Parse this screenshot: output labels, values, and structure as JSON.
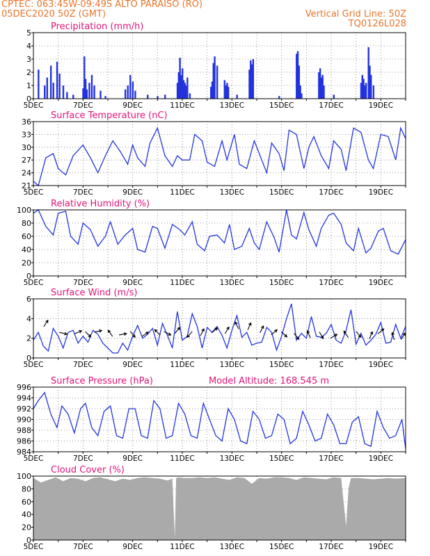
{
  "header": {
    "org_coords": "CPTEC:   063:45W-09:49S   ALTO PARAISO (RO)",
    "date": "05DEC2020 50Z (GMT)",
    "grid_note": "Vertical Grid Line: 50Z",
    "code": "TQ0126L028"
  },
  "colors": {
    "header": "#e8742a",
    "title": "#e0147a",
    "series": "#2233dd",
    "wind_arrow": "#000000",
    "cloud": "#aaaaaa"
  },
  "chart_data": [
    {
      "type": "bar",
      "title": "Precipitation (mm/h)",
      "ylim": [
        0,
        5
      ],
      "yticks": [
        0,
        1,
        2,
        3,
        4,
        5
      ],
      "x_day_range": [
        5.0,
        20.0
      ],
      "xticks": [
        "5DEC",
        "7DEC",
        "9DEC",
        "11DEC",
        "13DEC",
        "15DEC",
        "17DEC",
        "19DEC"
      ],
      "x": [
        5.2,
        5.45,
        5.55,
        5.7,
        5.8,
        5.95,
        6.05,
        6.2,
        6.35,
        6.6,
        7.0,
        7.05,
        7.1,
        7.15,
        7.25,
        7.35,
        7.45,
        7.7,
        7.9,
        8.7,
        8.8,
        8.9,
        9.0,
        9.1,
        9.6,
        10.0,
        10.3,
        10.8,
        10.85,
        10.9,
        10.95,
        11.0,
        11.05,
        11.1,
        11.15,
        11.2,
        11.3,
        12.15,
        12.2,
        12.25,
        12.3,
        12.4,
        12.7,
        12.75,
        12.8,
        12.85,
        13.2,
        13.7,
        13.75,
        13.8,
        13.85,
        14.9,
        15.6,
        15.65,
        15.7,
        15.75,
        15.8,
        16.5,
        16.55,
        16.6,
        16.65,
        16.7,
        17.1,
        18.2,
        18.25,
        18.3,
        18.35,
        18.4,
        18.5,
        18.55,
        18.6,
        18.7
      ],
      "values": [
        2.2,
        1.0,
        1.6,
        2.5,
        1.2,
        2.8,
        1.9,
        1.0,
        0.5,
        0.3,
        0.8,
        3.2,
        1.5,
        0.7,
        1.2,
        1.8,
        1.0,
        0.6,
        0.2,
        0.7,
        1.0,
        1.8,
        1.3,
        0.6,
        0.3,
        0.2,
        0.3,
        1.2,
        2.0,
        3.1,
        1.8,
        2.3,
        1.4,
        1.2,
        1.0,
        1.6,
        0.4,
        0.9,
        1.3,
        2.7,
        3.2,
        2.5,
        1.4,
        1.0,
        1.2,
        0.9,
        0.3,
        2.2,
        2.9,
        2.6,
        3.0,
        0.2,
        3.4,
        3.6,
        2.5,
        1.0,
        0.4,
        2.0,
        2.3,
        1.6,
        1.8,
        1.0,
        0.3,
        1.2,
        1.8,
        1.5,
        1.0,
        1.2,
        3.9,
        2.5,
        1.8,
        1.0
      ]
    },
    {
      "type": "line",
      "title": "Surface Temperature (nC)",
      "ylim": [
        21,
        36
      ],
      "yticks": [
        21,
        24,
        27,
        30,
        33,
        36
      ],
      "x_day_range": [
        5.0,
        20.0
      ],
      "xticks": [
        "5DEC",
        "7DEC",
        "9DEC",
        "11DEC",
        "13DEC",
        "15DEC",
        "17DEC",
        "19DEC"
      ],
      "x": [
        5.0,
        5.2,
        5.5,
        5.8,
        6.0,
        6.3,
        6.6,
        7.0,
        7.3,
        7.6,
        7.9,
        8.2,
        8.5,
        8.8,
        9.0,
        9.2,
        9.5,
        9.7,
        10.0,
        10.3,
        10.6,
        10.8,
        11.0,
        11.3,
        11.5,
        11.8,
        12.0,
        12.3,
        12.6,
        12.8,
        13.1,
        13.3,
        13.6,
        13.9,
        14.1,
        14.4,
        14.6,
        14.9,
        15.1,
        15.3,
        15.6,
        15.9,
        16.1,
        16.3,
        16.6,
        16.9,
        17.1,
        17.4,
        17.6,
        17.9,
        18.2,
        18.5,
        18.7,
        19.0,
        19.3,
        19.6,
        19.8,
        20.0
      ],
      "values": [
        22.0,
        21.0,
        27.5,
        28.5,
        25.0,
        23.5,
        28.0,
        30.5,
        27.5,
        24.0,
        28.0,
        31.5,
        29.0,
        26.0,
        30.5,
        27.5,
        25.5,
        31.0,
        34.5,
        28.0,
        25.5,
        28.0,
        27.0,
        27.0,
        33.0,
        31.5,
        26.5,
        25.5,
        31.5,
        27.0,
        33.0,
        26.0,
        25.0,
        31.5,
        28.5,
        24.0,
        31.0,
        28.5,
        24.5,
        34.0,
        33.0,
        25.0,
        30.0,
        32.5,
        28.0,
        25.0,
        31.5,
        29.5,
        24.5,
        34.5,
        33.5,
        27.0,
        25.0,
        33.0,
        32.5,
        27.0,
        34.5,
        32.0
      ]
    },
    {
      "type": "line",
      "title": "Relative Humidity (%)",
      "ylim": [
        0,
        100
      ],
      "yticks": [
        0,
        20,
        40,
        60,
        80,
        100
      ],
      "x_day_range": [
        5.0,
        20.0
      ],
      "xticks": [
        "5DEC",
        "7DEC",
        "9DEC",
        "11DEC",
        "13DEC",
        "15DEC",
        "17DEC",
        "19DEC"
      ],
      "x": [
        5.0,
        5.2,
        5.5,
        5.8,
        6.0,
        6.3,
        6.5,
        6.8,
        7.0,
        7.3,
        7.6,
        7.9,
        8.1,
        8.4,
        8.7,
        9.0,
        9.2,
        9.5,
        9.8,
        10.0,
        10.3,
        10.6,
        10.9,
        11.1,
        11.4,
        11.6,
        11.9,
        12.1,
        12.4,
        12.7,
        12.9,
        13.1,
        13.4,
        13.7,
        13.9,
        14.1,
        14.4,
        14.7,
        14.9,
        15.2,
        15.4,
        15.6,
        15.9,
        16.1,
        16.4,
        16.6,
        16.9,
        17.1,
        17.4,
        17.6,
        17.9,
        18.1,
        18.4,
        18.6,
        18.9,
        19.1,
        19.4,
        19.7,
        20.0
      ],
      "values": [
        95,
        100,
        75,
        62,
        95,
        98,
        60,
        48,
        80,
        70,
        45,
        60,
        82,
        48,
        62,
        72,
        40,
        36,
        75,
        72,
        42,
        78,
        70,
        62,
        82,
        48,
        38,
        60,
        62,
        50,
        78,
        40,
        45,
        72,
        50,
        40,
        82,
        58,
        36,
        100,
        62,
        56,
        96,
        70,
        45,
        72,
        92,
        95,
        78,
        50,
        38,
        72,
        35,
        42,
        68,
        72,
        38,
        33,
        55
      ]
    },
    {
      "type": "line",
      "title": "Surface Wind (m/s)",
      "ylim": [
        0,
        6
      ],
      "yticks": [
        0,
        2,
        4,
        6
      ],
      "x_day_range": [
        5.0,
        20.0
      ],
      "xticks": [
        "5DEC",
        "7DEC",
        "9DEC",
        "11DEC",
        "13DEC",
        "15DEC",
        "17DEC",
        "19DEC"
      ],
      "x": [
        5.0,
        5.2,
        5.4,
        5.6,
        5.8,
        6.0,
        6.2,
        6.4,
        6.6,
        6.8,
        7.0,
        7.2,
        7.4,
        7.6,
        7.8,
        8.0,
        8.2,
        8.4,
        8.6,
        8.8,
        9.0,
        9.2,
        9.4,
        9.6,
        9.8,
        10.0,
        10.2,
        10.4,
        10.6,
        10.8,
        11.0,
        11.2,
        11.4,
        11.6,
        11.8,
        12.0,
        12.2,
        12.4,
        12.6,
        12.8,
        13.0,
        13.2,
        13.4,
        13.6,
        13.8,
        14.0,
        14.2,
        14.4,
        14.6,
        14.8,
        15.0,
        15.2,
        15.4,
        15.6,
        15.8,
        16.0,
        16.2,
        16.4,
        16.6,
        16.8,
        17.0,
        17.2,
        17.4,
        17.6,
        17.8,
        18.0,
        18.2,
        18.4,
        18.6,
        18.8,
        19.0,
        19.2,
        19.4,
        19.6,
        19.8,
        20.0
      ],
      "values": [
        1.8,
        2.6,
        1.2,
        0.7,
        3.0,
        2.2,
        1.0,
        2.6,
        2.8,
        1.5,
        2.2,
        1.6,
        2.8,
        2.4,
        1.5,
        1.0,
        0.5,
        0.5,
        1.5,
        0.8,
        2.2,
        3.3,
        2.0,
        2.4,
        3.0,
        1.3,
        3.5,
        2.3,
        1.0,
        4.7,
        1.8,
        2.2,
        4.5,
        3.2,
        1.0,
        3.1,
        2.6,
        3.2,
        2.3,
        1.0,
        2.8,
        4.3,
        2.1,
        2.6,
        1.3,
        1.5,
        1.6,
        3.1,
        2.6,
        0.8,
        2.2,
        4.0,
        5.5,
        1.8,
        2.5,
        2.0,
        4.2,
        2.2,
        2.1,
        2.5,
        3.4,
        1.8,
        1.5,
        2.8,
        4.9,
        1.4,
        2.5,
        1.3,
        1.8,
        2.4,
        3.6,
        1.5,
        1.6,
        3.4,
        2.0,
        3.2
      ],
      "arrows": {
        "x": [
          5.5,
          6.2,
          6.8,
          7.2,
          7.6,
          8.1,
          8.6,
          9.0,
          9.5,
          10.0,
          10.4,
          10.8,
          11.3,
          11.8,
          12.3,
          12.8,
          13.2,
          13.7,
          14.2,
          14.7,
          15.1,
          15.6,
          16.1,
          16.6,
          17.1,
          17.6,
          18.1,
          18.6,
          19.0,
          19.5,
          19.9
        ],
        "u": [
          0.6,
          0.8,
          0.7,
          0.6,
          0.9,
          -0.5,
          0.6,
          0.4,
          0.6,
          -0.7,
          0.8,
          0.5,
          -0.6,
          0.4,
          0.7,
          0.5,
          -0.4,
          0.3,
          0.4,
          0.6,
          0.8,
          0.5,
          -0.3,
          0.4,
          0.5,
          -0.4,
          0.5,
          0.3,
          0.6,
          -0.2,
          0.5
        ],
        "v": [
          0.9,
          -0.2,
          0.3,
          -0.6,
          0.2,
          0.7,
          0.1,
          -0.5,
          0.4,
          0.7,
          -0.4,
          0.6,
          -0.7,
          0.8,
          0.6,
          0.9,
          0.8,
          0.7,
          0.8,
          0.5,
          -0.7,
          -0.6,
          0.7,
          -0.7,
          0.3,
          0.6,
          -0.6,
          0.7,
          0.5,
          0.7,
          0.8
        ],
        "y": [
          3.5,
          2.5,
          2.6,
          2.4,
          2.7,
          2.5,
          2.4,
          2.4,
          2.4,
          2.6,
          2.5,
          2.8,
          2.4,
          2.6,
          2.8,
          2.8,
          3.3,
          3.2,
          2.9,
          2.6,
          2.4,
          2.2,
          2.4,
          2.3,
          2.2,
          2.4,
          2.4,
          2.3,
          2.7,
          2.2,
          2.2
        ]
      }
    },
    {
      "type": "line",
      "title": "Surface Pressure (hPa)",
      "annotation": "Model Altitude: 168.545 m",
      "ylim": [
        984,
        996
      ],
      "yticks": [
        984,
        986,
        988,
        990,
        992,
        994,
        996
      ],
      "x_day_range": [
        5.0,
        20.0
      ],
      "xticks": [
        "5DEC",
        "7DEC",
        "9DEC",
        "11DEC",
        "13DEC",
        "15DEC",
        "17DEC",
        "19DEC"
      ],
      "x": [
        5.0,
        5.2,
        5.45,
        5.7,
        5.95,
        6.15,
        6.4,
        6.65,
        6.9,
        7.1,
        7.35,
        7.6,
        7.85,
        8.1,
        8.35,
        8.6,
        8.85,
        9.1,
        9.35,
        9.6,
        9.85,
        10.1,
        10.35,
        10.6,
        10.85,
        11.1,
        11.35,
        11.6,
        11.85,
        12.1,
        12.35,
        12.6,
        12.85,
        13.1,
        13.35,
        13.6,
        13.85,
        14.1,
        14.35,
        14.6,
        14.85,
        15.1,
        15.35,
        15.6,
        15.85,
        16.1,
        16.35,
        16.6,
        16.85,
        17.1,
        17.35,
        17.6,
        17.85,
        18.1,
        18.35,
        18.6,
        18.85,
        19.1,
        19.35,
        19.6,
        19.85,
        20.0
      ],
      "values": [
        992.0,
        993.5,
        995.0,
        991.0,
        988.5,
        992.5,
        991.0,
        987.5,
        992.0,
        993.0,
        988.5,
        987.0,
        991.5,
        992.5,
        987.0,
        986.5,
        992.0,
        992.0,
        987.0,
        986.5,
        993.5,
        992.0,
        986.5,
        987.0,
        993.0,
        991.0,
        987.0,
        986.5,
        993.0,
        990.0,
        987.0,
        986.0,
        992.0,
        990.0,
        986.0,
        985.5,
        991.5,
        990.0,
        986.5,
        987.0,
        991.0,
        990.0,
        985.5,
        986.5,
        991.5,
        989.0,
        986.0,
        986.5,
        991.0,
        989.0,
        985.5,
        985.5,
        989.5,
        990.5,
        985.5,
        985.0,
        991.5,
        988.5,
        986.5,
        987.0,
        990.0,
        984.5
      ]
    },
    {
      "type": "area",
      "title": "Cloud Cover (%)",
      "ylim": [
        0,
        100
      ],
      "yticks": [
        0,
        20,
        40,
        60,
        80,
        100
      ],
      "x_day_range": [
        5.0,
        20.0
      ],
      "xticks": [
        "5DEC",
        "7DEC",
        "9DEC",
        "11DEC",
        "13DEC",
        "15DEC",
        "17DEC",
        "19DEC"
      ],
      "x": [
        5.0,
        5.3,
        5.6,
        5.9,
        6.2,
        6.5,
        6.8,
        7.1,
        7.4,
        7.7,
        8.0,
        8.3,
        8.6,
        8.9,
        9.2,
        9.5,
        9.8,
        10.1,
        10.4,
        10.6,
        10.7,
        10.75,
        10.8,
        11.1,
        11.4,
        11.7,
        12.0,
        12.3,
        12.6,
        12.9,
        13.2,
        13.5,
        13.8,
        14.1,
        14.4,
        14.7,
        15.0,
        15.3,
        15.6,
        15.9,
        16.2,
        16.5,
        16.8,
        17.1,
        17.4,
        17.6,
        17.7,
        17.8,
        18.1,
        18.4,
        18.7,
        19.0,
        19.3,
        19.6,
        20.0
      ],
      "values": [
        97,
        90,
        94,
        98,
        92,
        97,
        96,
        92,
        97,
        98,
        95,
        92,
        96,
        94,
        97,
        98,
        97,
        96,
        93,
        96,
        4,
        96,
        98,
        97,
        97,
        98,
        97,
        98,
        96,
        94,
        98,
        97,
        88,
        97,
        96,
        98,
        98,
        97,
        94,
        98,
        97,
        96,
        95,
        98,
        97,
        22,
        82,
        97,
        97,
        96,
        95,
        96,
        97,
        96,
        97
      ]
    }
  ]
}
